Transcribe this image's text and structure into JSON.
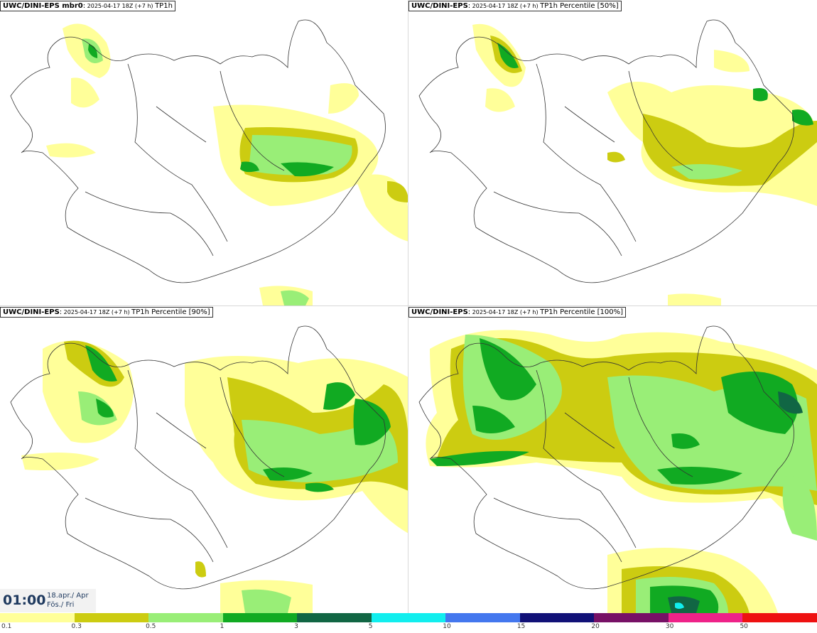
{
  "panels": [
    {
      "source": "UWC/DINI-EPS mbr0",
      "sep": ":",
      "run": " 2025-04-17 18Z (+7 h) ",
      "field": "TP1h"
    },
    {
      "source": "UWC/DINI-EPS",
      "sep": ":",
      "run": " 2025-04-17 18Z (+7 h) ",
      "field": "TP1h Percentile [50%]"
    },
    {
      "source": "UWC/DINI-EPS",
      "sep": ":",
      "run": " 2025-04-17 18Z (+7 h) ",
      "field": "TP1h Percentile [90%]"
    },
    {
      "source": "UWC/DINI-EPS",
      "sep": ":",
      "run": " 2025-04-17 18Z (+7 h) ",
      "field": "TP1h Percentile [100%]"
    }
  ],
  "time": {
    "clock": "01:00",
    "date_line1": "18.apr./ Apr",
    "date_line2": "Fös./ Fri"
  },
  "legend": {
    "colors": [
      "#ffff99",
      "#cccc11",
      "#99ee77",
      "#11aa22",
      "#116644",
      "#11eeee",
      "#4477ee",
      "#111177",
      "#771166",
      "#ee2288",
      "#ee1111"
    ],
    "labels": [
      "0.1",
      "0.3",
      "0.5",
      "1",
      "3",
      "5",
      "10",
      "15",
      "20",
      "30",
      "50"
    ]
  }
}
